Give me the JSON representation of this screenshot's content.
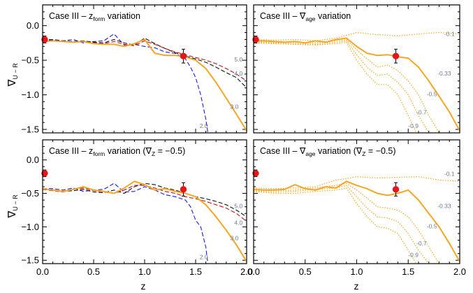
{
  "figure": {
    "xlabel_main": "z",
    "ylabel_main": "∇",
    "ylabel_sub": "U − R"
  },
  "chart_data": [
    {
      "type": "line",
      "title_parts": [
        "Case III – z",
        "form",
        " variation"
      ],
      "xlabel": "z",
      "ylabel": "∇U−R",
      "xlim": [
        0,
        2
      ],
      "ylim": [
        -1.55,
        0.3
      ],
      "xticks": [
        "0.0",
        "0.5",
        "1.0",
        "1.5",
        "2.0"
      ],
      "yticks": [
        "0.0",
        "-0.5",
        "-1.0",
        "-1.5"
      ],
      "observations": [
        {
          "x": 0.02,
          "y": -0.2,
          "err": 0.05
        },
        {
          "x": 1.38,
          "y": -0.44,
          "err": 0.1
        }
      ],
      "series": [
        {
          "label": "2.0",
          "color": "#1a1aee",
          "style": "dashed",
          "x": [
            0.0,
            0.1,
            0.2,
            0.3,
            0.4,
            0.5,
            0.6,
            0.7,
            0.8,
            0.9,
            1.0,
            1.1,
            1.2,
            1.3,
            1.4,
            1.45,
            1.5,
            1.55,
            1.6,
            1.62
          ],
          "y": [
            -0.2,
            -0.2,
            -0.22,
            -0.2,
            -0.25,
            -0.23,
            -0.22,
            -0.12,
            -0.28,
            -0.27,
            -0.3,
            -0.32,
            -0.38,
            -0.4,
            -0.48,
            -0.6,
            -0.75,
            -1.0,
            -1.35,
            -1.55
          ]
        },
        {
          "label": "3.0",
          "color": "#111111",
          "style": "dashed",
          "x": [
            0.0,
            0.1,
            0.2,
            0.3,
            0.4,
            0.5,
            0.6,
            0.7,
            0.8,
            0.9,
            1.0,
            1.1,
            1.2,
            1.3,
            1.4,
            1.5,
            1.6,
            1.7,
            1.8,
            1.9,
            2.0
          ],
          "y": [
            -0.21,
            -0.21,
            -0.22,
            -0.23,
            -0.22,
            -0.24,
            -0.25,
            -0.2,
            -0.25,
            -0.28,
            -0.18,
            -0.26,
            -0.33,
            -0.39,
            -0.44,
            -0.48,
            -0.53,
            -0.6,
            -0.68,
            -0.75,
            -0.9
          ]
        },
        {
          "label": "4.0",
          "color": "#cc1111",
          "style": "dashed",
          "x": [
            0.0,
            0.1,
            0.2,
            0.3,
            0.4,
            0.5,
            0.6,
            0.7,
            0.8,
            0.9,
            1.0,
            1.1,
            1.2,
            1.3,
            1.4,
            1.5,
            1.6,
            1.7,
            1.8,
            1.9,
            2.0
          ],
          "y": [
            -0.22,
            -0.22,
            -0.23,
            -0.24,
            -0.23,
            -0.25,
            -0.26,
            -0.23,
            -0.27,
            -0.29,
            -0.22,
            -0.27,
            -0.33,
            -0.38,
            -0.42,
            -0.46,
            -0.5,
            -0.55,
            -0.62,
            -0.7,
            -0.8
          ]
        },
        {
          "label": "5.0",
          "color": "#f5a623",
          "style": "solid",
          "x": [
            0.0,
            0.1,
            0.2,
            0.3,
            0.4,
            0.5,
            0.6,
            0.7,
            0.8,
            0.9,
            1.0,
            1.1,
            1.2,
            1.3,
            1.4,
            1.5,
            1.6,
            1.7,
            1.8,
            1.9,
            2.0
          ],
          "y": [
            -0.23,
            -0.22,
            -0.23,
            -0.24,
            -0.23,
            -0.26,
            -0.27,
            -0.27,
            -0.3,
            -0.26,
            -0.2,
            -0.4,
            -0.43,
            -0.43,
            -0.45,
            -0.5,
            -0.62,
            -0.82,
            -1.05,
            -1.28,
            -1.52
          ]
        }
      ]
    },
    {
      "type": "line",
      "title_parts": [
        "Case III – ∇",
        "age",
        " variation"
      ],
      "xlabel": "z",
      "ylabel": "",
      "xlim": [
        0,
        2
      ],
      "ylim": [
        -1.55,
        0.3
      ],
      "xticks": [
        "0.0",
        "0.5",
        "1.0",
        "1.5",
        "2.0"
      ],
      "yticks": [],
      "observations": [
        {
          "x": 0.02,
          "y": -0.2,
          "err": 0.05
        },
        {
          "x": 1.38,
          "y": -0.44,
          "err": 0.1
        }
      ],
      "series": [
        {
          "label": "-0.1",
          "color": "#f5a623",
          "style": "dotted",
          "x": [
            0.0,
            0.2,
            0.4,
            0.6,
            0.8,
            1.0,
            1.2,
            1.4,
            1.6,
            1.8,
            2.0
          ],
          "y": [
            -0.2,
            -0.21,
            -0.2,
            -0.22,
            -0.18,
            -0.1,
            -0.13,
            -0.15,
            -0.12,
            -0.1,
            -0.12
          ]
        },
        {
          "label": "-0.33",
          "color": "#f5a623",
          "style": "solid",
          "x": [
            0.0,
            0.1,
            0.2,
            0.3,
            0.4,
            0.5,
            0.6,
            0.7,
            0.8,
            0.9,
            1.0,
            1.1,
            1.2,
            1.3,
            1.4,
            1.5,
            1.6,
            1.7,
            1.8,
            1.9,
            2.0
          ],
          "y": [
            -0.22,
            -0.22,
            -0.23,
            -0.24,
            -0.23,
            -0.25,
            -0.22,
            -0.24,
            -0.2,
            -0.18,
            -0.3,
            -0.4,
            -0.43,
            -0.42,
            -0.45,
            -0.47,
            -0.6,
            -0.8,
            -1.02,
            -1.25,
            -1.52
          ]
        },
        {
          "label": "-0.5",
          "color": "#f5a623",
          "style": "dotted",
          "x": [
            0.0,
            0.2,
            0.4,
            0.6,
            0.8,
            0.9,
            1.0,
            1.1,
            1.2,
            1.3,
            1.4,
            1.5,
            1.6,
            1.7,
            1.8
          ],
          "y": [
            -0.23,
            -0.24,
            -0.24,
            -0.25,
            -0.22,
            -0.2,
            -0.35,
            -0.48,
            -0.6,
            -0.57,
            -0.65,
            -0.8,
            -1.0,
            -1.3,
            -1.55
          ]
        },
        {
          "label": "-0.7",
          "color": "#f5a623",
          "style": "dotted",
          "x": [
            0.0,
            0.2,
            0.4,
            0.6,
            0.8,
            0.9,
            1.0,
            1.1,
            1.2,
            1.3,
            1.4,
            1.5,
            1.6,
            1.7
          ],
          "y": [
            -0.24,
            -0.25,
            -0.26,
            -0.27,
            -0.24,
            -0.22,
            -0.42,
            -0.6,
            -0.72,
            -0.7,
            -0.82,
            -1.0,
            -1.3,
            -1.55
          ]
        },
        {
          "label": "-0.9",
          "color": "#f5a623",
          "style": "dotted",
          "x": [
            0.0,
            0.2,
            0.4,
            0.6,
            0.8,
            0.9,
            1.0,
            1.1,
            1.2,
            1.3,
            1.4,
            1.5,
            1.58
          ],
          "y": [
            -0.25,
            -0.26,
            -0.27,
            -0.28,
            -0.26,
            -0.24,
            -0.5,
            -0.7,
            -0.85,
            -0.85,
            -1.0,
            -1.3,
            -1.55
          ]
        }
      ]
    },
    {
      "type": "line",
      "title_parts": [
        "Case III – z",
        "form",
        " variation (∇",
        "Z",
        " = −0.5)"
      ],
      "xlabel": "z",
      "ylabel": "∇U−R",
      "xlim": [
        0,
        2
      ],
      "ylim": [
        -1.55,
        0.3
      ],
      "xticks": [
        "0.0",
        "0.5",
        "1.0",
        "1.5",
        "2.0"
      ],
      "yticks": [
        "0.0",
        "-0.5",
        "-1.0",
        "-1.5"
      ],
      "observations": [
        {
          "x": 0.02,
          "y": -0.2,
          "err": 0.05
        },
        {
          "x": 1.38,
          "y": -0.44,
          "err": 0.1
        }
      ],
      "series": [
        {
          "label": "2.0",
          "color": "#1a1aee",
          "style": "dashed",
          "x": [
            0.0,
            0.1,
            0.2,
            0.3,
            0.4,
            0.5,
            0.6,
            0.7,
            0.8,
            0.9,
            1.0,
            1.1,
            1.2,
            1.3,
            1.4,
            1.45,
            1.5,
            1.55,
            1.6,
            1.62
          ],
          "y": [
            -0.43,
            -0.43,
            -0.45,
            -0.42,
            -0.47,
            -0.45,
            -0.44,
            -0.35,
            -0.48,
            -0.47,
            -0.4,
            -0.45,
            -0.52,
            -0.55,
            -0.6,
            -0.7,
            -0.9,
            -1.0,
            -1.3,
            -1.55
          ]
        },
        {
          "label": "3.0",
          "color": "#111111",
          "style": "dashed",
          "x": [
            0.0,
            0.1,
            0.2,
            0.3,
            0.4,
            0.5,
            0.6,
            0.7,
            0.8,
            0.9,
            1.0,
            1.1,
            1.2,
            1.3,
            1.4,
            1.5,
            1.6,
            1.7,
            1.8,
            1.9,
            2.0
          ],
          "y": [
            -0.44,
            -0.45,
            -0.47,
            -0.46,
            -0.44,
            -0.48,
            -0.49,
            -0.45,
            -0.5,
            -0.4,
            -0.35,
            -0.37,
            -0.42,
            -0.45,
            -0.5,
            -0.55,
            -0.58,
            -0.62,
            -0.67,
            -0.75,
            -0.85
          ]
        },
        {
          "label": "4.0",
          "color": "#cc1111",
          "style": "dashed",
          "x": [
            0.0,
            0.1,
            0.2,
            0.3,
            0.4,
            0.5,
            0.6,
            0.7,
            0.8,
            0.9,
            1.0,
            1.1,
            1.2,
            1.3,
            1.4,
            1.5,
            1.6,
            1.7,
            1.8,
            1.9,
            2.0
          ],
          "y": [
            -0.44,
            -0.46,
            -0.48,
            -0.44,
            -0.42,
            -0.46,
            -0.48,
            -0.5,
            -0.45,
            -0.38,
            -0.38,
            -0.42,
            -0.47,
            -0.5,
            -0.55,
            -0.58,
            -0.62,
            -0.67,
            -0.72,
            -0.8,
            -0.92
          ]
        },
        {
          "label": "5.0",
          "color": "#f5a623",
          "style": "solid",
          "x": [
            0.0,
            0.1,
            0.2,
            0.3,
            0.4,
            0.5,
            0.6,
            0.7,
            0.8,
            0.9,
            1.0,
            1.1,
            1.2,
            1.3,
            1.4,
            1.5,
            1.6,
            1.7,
            1.8,
            1.9,
            2.0
          ],
          "y": [
            -0.43,
            -0.45,
            -0.47,
            -0.44,
            -0.4,
            -0.45,
            -0.47,
            -0.5,
            -0.42,
            -0.32,
            -0.37,
            -0.45,
            -0.43,
            -0.47,
            -0.5,
            -0.55,
            -0.67,
            -0.85,
            -1.05,
            -1.27,
            -1.52
          ]
        }
      ]
    },
    {
      "type": "line",
      "title_parts": [
        "Case III – ∇",
        "age",
        " variation (∇",
        "Z",
        " = −0.5)"
      ],
      "xlabel": "z",
      "ylabel": "",
      "xlim": [
        0,
        2
      ],
      "ylim": [
        -1.55,
        0.3
      ],
      "xticks": [
        "0.0",
        "0.5",
        "1.0",
        "1.5",
        "2.0"
      ],
      "yticks": [],
      "observations": [
        {
          "x": 0.02,
          "y": -0.2,
          "err": 0.05
        },
        {
          "x": 1.38,
          "y": -0.44,
          "err": 0.1
        }
      ],
      "series": [
        {
          "label": "-0.1",
          "color": "#f5a623",
          "style": "dotted",
          "x": [
            0.0,
            0.2,
            0.4,
            0.6,
            0.8,
            0.9,
            1.0,
            1.2,
            1.4,
            1.6,
            1.8,
            2.0
          ],
          "y": [
            -0.42,
            -0.43,
            -0.42,
            -0.4,
            -0.3,
            -0.28,
            -0.25,
            -0.27,
            -0.26,
            -0.25,
            -0.3,
            -0.32
          ]
        },
        {
          "label": "-0.33",
          "color": "#f5a623",
          "style": "solid",
          "x": [
            0.0,
            0.1,
            0.2,
            0.3,
            0.4,
            0.5,
            0.6,
            0.7,
            0.8,
            0.9,
            1.0,
            1.1,
            1.2,
            1.3,
            1.4,
            1.5,
            1.6,
            1.7,
            1.8,
            1.9,
            2.0
          ],
          "y": [
            -0.44,
            -0.45,
            -0.45,
            -0.44,
            -0.37,
            -0.43,
            -0.45,
            -0.4,
            -0.42,
            -0.32,
            -0.38,
            -0.43,
            -0.5,
            -0.53,
            -0.5,
            -0.45,
            -0.6,
            -0.8,
            -1.0,
            -1.25,
            -1.52
          ]
        },
        {
          "label": "-0.5",
          "color": "#f5a623",
          "style": "dotted",
          "x": [
            0.0,
            0.2,
            0.4,
            0.6,
            0.8,
            0.9,
            1.0,
            1.1,
            1.2,
            1.3,
            1.4,
            1.5,
            1.6,
            1.7,
            1.8
          ],
          "y": [
            -0.45,
            -0.46,
            -0.45,
            -0.42,
            -0.38,
            -0.35,
            -0.45,
            -0.57,
            -0.7,
            -0.72,
            -0.75,
            -0.85,
            -1.05,
            -1.3,
            -1.55
          ]
        },
        {
          "label": "-0.7",
          "color": "#f5a623",
          "style": "dotted",
          "x": [
            0.0,
            0.2,
            0.4,
            0.6,
            0.8,
            0.9,
            1.0,
            1.1,
            1.2,
            1.3,
            1.4,
            1.5,
            1.6,
            1.7
          ],
          "y": [
            -0.46,
            -0.48,
            -0.47,
            -0.44,
            -0.42,
            -0.38,
            -0.55,
            -0.72,
            -0.85,
            -0.87,
            -0.92,
            -1.1,
            -1.35,
            -1.55
          ]
        },
        {
          "label": "-0.9",
          "color": "#f5a623",
          "style": "dotted",
          "x": [
            0.0,
            0.2,
            0.4,
            0.6,
            0.8,
            0.9,
            1.0,
            1.1,
            1.2,
            1.3,
            1.4,
            1.5,
            1.58
          ],
          "y": [
            -0.47,
            -0.5,
            -0.5,
            -0.47,
            -0.45,
            -0.42,
            -0.65,
            -0.85,
            -1.0,
            -1.02,
            -1.1,
            -1.35,
            -1.55
          ]
        }
      ]
    }
  ]
}
